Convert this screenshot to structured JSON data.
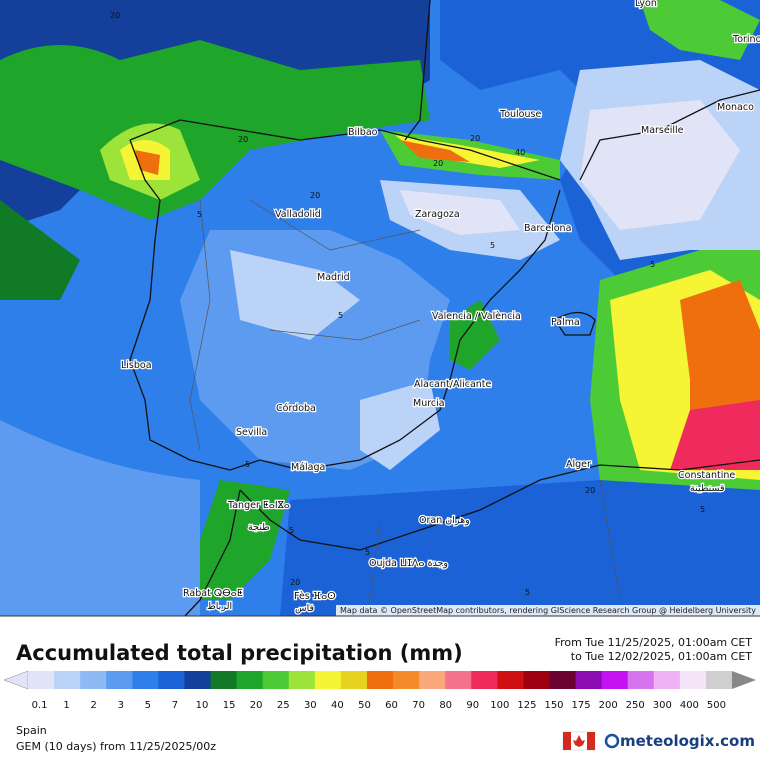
{
  "map": {
    "cities": [
      "Lyon",
      "Torino",
      "Monaco",
      "Toulouse",
      "Marseille",
      "Bilbao",
      "Valladolid",
      "Zaragoza",
      "Barcelona",
      "Madrid",
      "Valencia / València",
      "Palma",
      "Lisboa",
      "Alacant/Alicante",
      "Murcia",
      "Córdoba",
      "Sevilla",
      "Málaga",
      "Alger",
      "Constantine",
      "قسنطينة",
      "Tanger ⵟⴰⵏⴵⴰ",
      "طنجة",
      "Oran وهران",
      "Oujda ⵡⵊⴷⴰ وجدة",
      "Rabat ⵕⴱⴰⵟ",
      "الرباط",
      "Fès ⴼⴰⵙ",
      "فاس"
    ],
    "contour_labels": [
      20,
      20,
      20,
      40,
      20,
      20,
      5,
      5,
      5,
      5,
      5,
      5,
      5,
      20,
      20,
      5,
      5
    ],
    "attribution": "Map data © OpenStreetMap contributors, rendering GIScience Research Group @ Heidelberg University"
  },
  "legend": {
    "title": "Accumulated total precipitation (mm)",
    "from": "From Tue 11/25/2025, 01:00am CET",
    "to": "to Tue 12/02/2025, 01:00am CET",
    "ticks": [
      0.1,
      1,
      2,
      3,
      5,
      7,
      10,
      15,
      20,
      25,
      30,
      40,
      50,
      60,
      70,
      80,
      90,
      100,
      125,
      150,
      175,
      200,
      250,
      300,
      400,
      500
    ],
    "colors": [
      "#e1e3f6",
      "#bcd3f8",
      "#8db9f5",
      "#5c9bf0",
      "#2f7fea",
      "#1a62d6",
      "#143f9a",
      "#117a26",
      "#1fa52a",
      "#4ccb36",
      "#9ce43a",
      "#f5f536",
      "#e6d21f",
      "#ef6f0e",
      "#f58a2b",
      "#f8a87a",
      "#f5728f",
      "#ef2a5c",
      "#cf0f12",
      "#9e0012",
      "#6c0230",
      "#8c0bb3",
      "#c413f0",
      "#d873f0",
      "#eeb2f5",
      "#f6e4f8",
      "#cfcfcf"
    ]
  },
  "footer": {
    "region": "Spain",
    "model": "GEM (10 days) from 11/25/2025/00z",
    "brand": "meteologix.com"
  }
}
